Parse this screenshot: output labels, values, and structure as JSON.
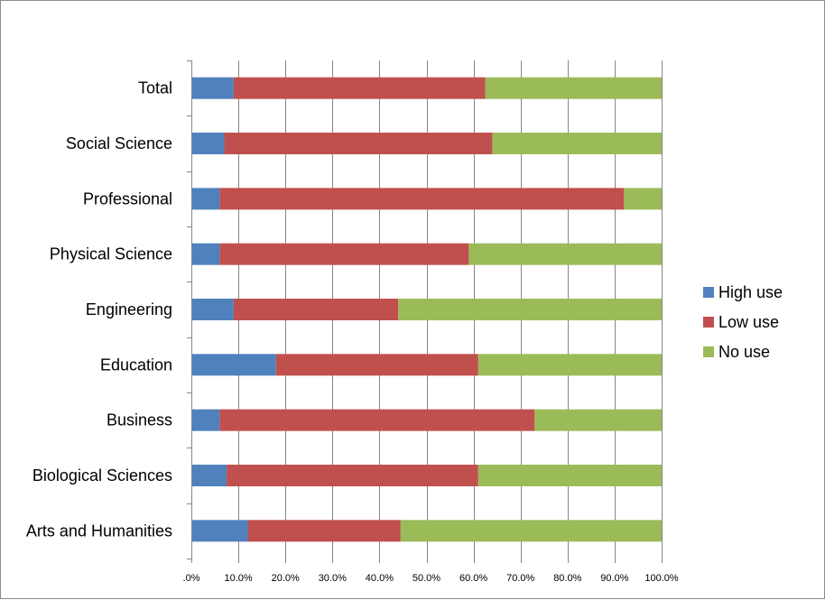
{
  "chart_data": {
    "type": "bar",
    "orientation": "horizontal",
    "stacked": "percent",
    "categories": [
      "Total",
      "Social Science",
      "Professional",
      "Physical Science",
      "Engineering",
      "Education",
      "Business",
      "Biological Sciences",
      "Arts and Humanities"
    ],
    "series": [
      {
        "name": "High use",
        "color": "#4f81bd",
        "values": [
          9.0,
          7.0,
          6.0,
          6.0,
          9.0,
          18.0,
          6.0,
          7.5,
          12.0
        ]
      },
      {
        "name": "Low use",
        "color": "#c0504d",
        "values": [
          53.5,
          57.0,
          86.0,
          53.0,
          35.0,
          43.0,
          67.0,
          53.5,
          32.5
        ]
      },
      {
        "name": "No use",
        "color": "#9bbb59",
        "values": [
          37.5,
          36.0,
          8.0,
          41.0,
          56.0,
          39.0,
          27.0,
          39.0,
          55.5
        ]
      }
    ],
    "xticks": [
      ".0%",
      "10.0%",
      "20.0%",
      "30.0%",
      "40.0%",
      "50.0%",
      "60.0%",
      "70.0%",
      "80.0%",
      "90.0%",
      "100.0%"
    ],
    "xlim": [
      0,
      100
    ],
    "grid": "vertical",
    "legend": "right",
    "title": "",
    "xlabel": "",
    "ylabel": ""
  }
}
